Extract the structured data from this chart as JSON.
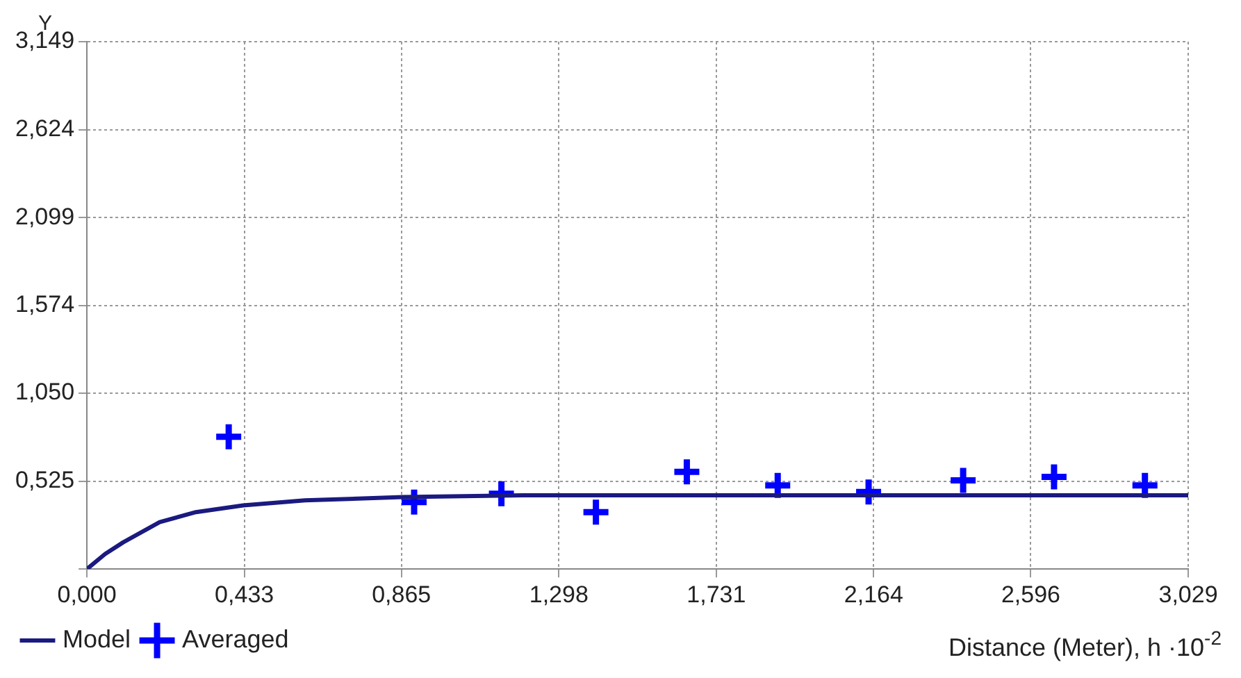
{
  "chart_data": {
    "type": "scatter",
    "xlabel": "Distance (Meter), h ·10$^{-2}$",
    "ylabel": "Y",
    "xlim": [
      0,
      3.029
    ],
    "ylim": [
      0,
      3.149
    ],
    "xticks": [
      {
        "value": 0,
        "label": "0,000"
      },
      {
        "value": 0.433,
        "label": "0,433"
      },
      {
        "value": 0.865,
        "label": "0,865"
      },
      {
        "value": 1.298,
        "label": "1,298"
      },
      {
        "value": 1.731,
        "label": "1,731"
      },
      {
        "value": 2.164,
        "label": "2,164"
      },
      {
        "value": 2.596,
        "label": "2,596"
      },
      {
        "value": 3.029,
        "label": "3,029"
      }
    ],
    "yticks": [
      {
        "value": 0,
        "label": null
      },
      {
        "value": 0.525,
        "label": "0,525"
      },
      {
        "value": 1.05,
        "label": "1,050"
      },
      {
        "value": 1.574,
        "label": "1,574"
      },
      {
        "value": 2.099,
        "label": "2,099"
      },
      {
        "value": 2.624,
        "label": "2,624"
      },
      {
        "value": 3.149,
        "label": "3,149"
      }
    ],
    "grid": true,
    "legend": "bottom left",
    "series": [
      {
        "name": "Model",
        "type": "line",
        "color": "#1a1a80",
        "marker": "none",
        "x": [
          0,
          0.05,
          0.1,
          0.15,
          0.2,
          0.3,
          0.43,
          0.6,
          0.87,
          1.2,
          3.029
        ],
        "values": [
          0,
          0.09,
          0.16,
          0.22,
          0.28,
          0.34,
          0.38,
          0.41,
          0.43,
          0.44,
          0.44
        ]
      },
      {
        "name": "Averaged",
        "color": "#0000ff",
        "marker": "cross",
        "x": [
          0.39,
          0.9,
          1.14,
          1.4,
          1.65,
          1.9,
          2.15,
          2.41,
          2.66,
          2.91
        ],
        "values": [
          0.79,
          0.4,
          0.45,
          0.34,
          0.58,
          0.5,
          0.46,
          0.53,
          0.55,
          0.5
        ]
      }
    ]
  }
}
